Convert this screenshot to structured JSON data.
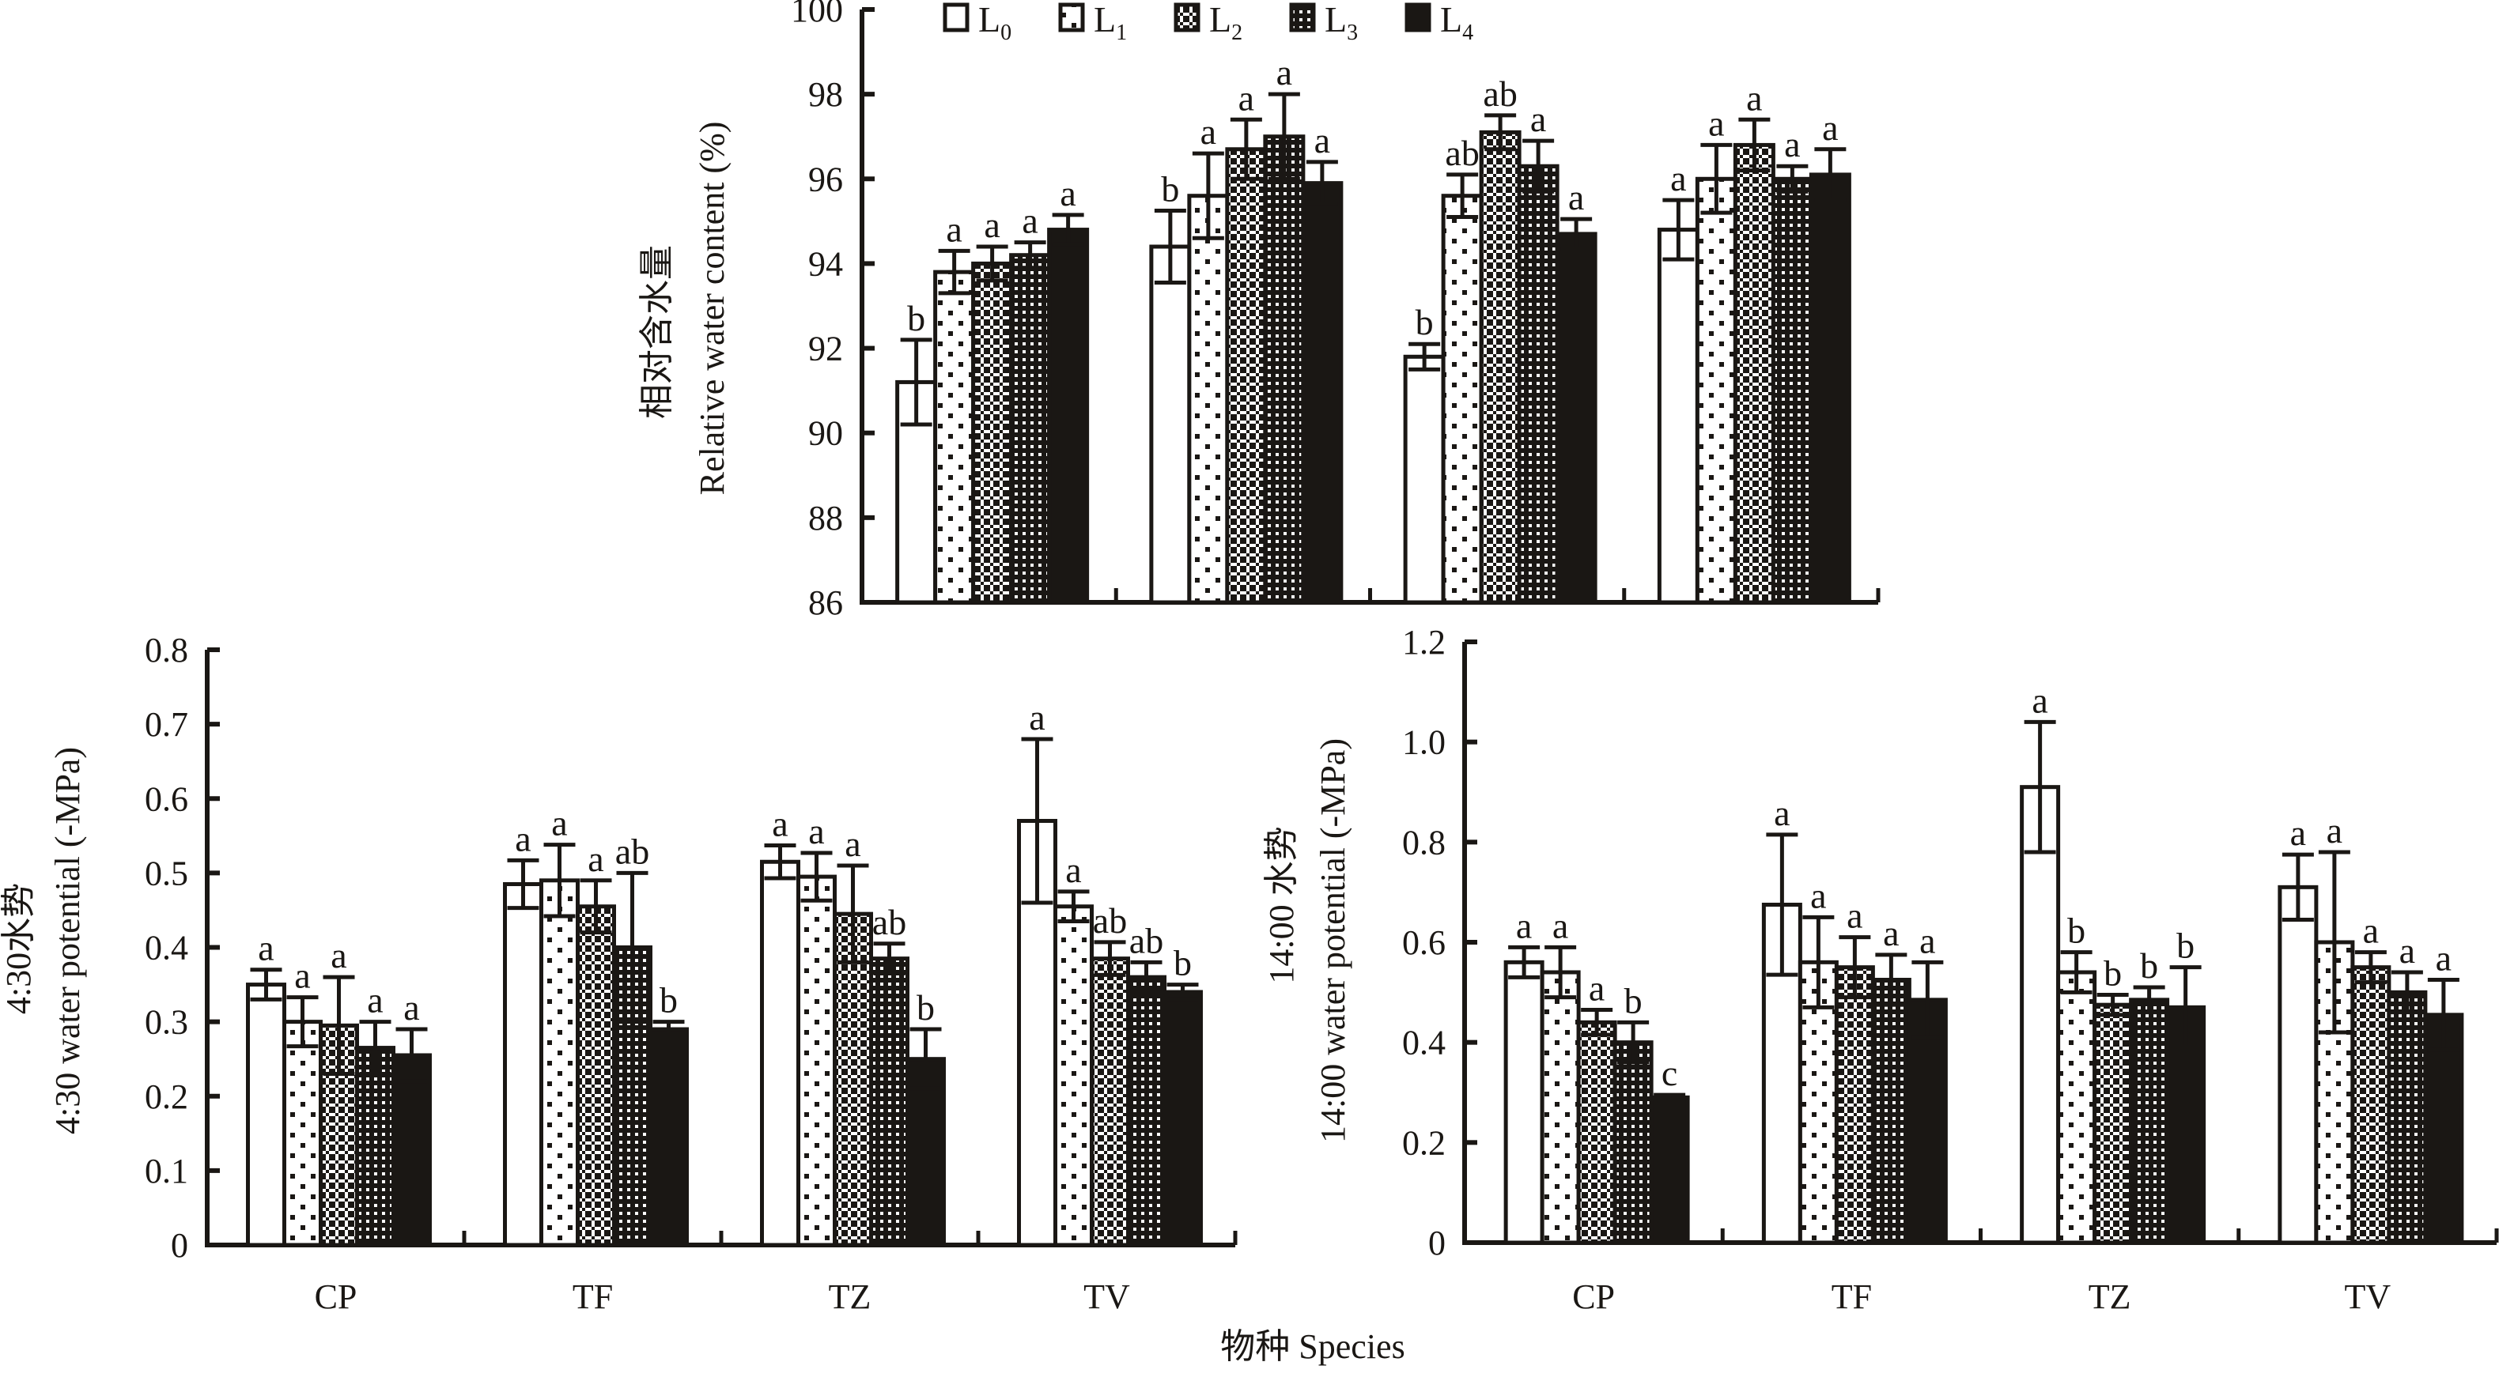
{
  "figure": {
    "xlabel_shared": "物种 Species",
    "legend_position": "top"
  },
  "legend": [
    {
      "label": "L",
      "sub": "0",
      "pattern": "empty"
    },
    {
      "label": "L",
      "sub": "1",
      "pattern": "sparse-dots"
    },
    {
      "label": "L",
      "sub": "2",
      "pattern": "checker"
    },
    {
      "label": "L",
      "sub": "3",
      "pattern": "dense-grid"
    },
    {
      "label": "L",
      "sub": "4",
      "pattern": "solid"
    }
  ],
  "colors": {
    "ink": "#1a1714",
    "background": "#ffffff"
  },
  "chart_data": [
    {
      "id": "rwc",
      "type": "bar",
      "title": "",
      "ylabel_cn": "相对含水量",
      "ylabel": "Relative water content (%)",
      "xlabel": "",
      "ylim": [
        86,
        100
      ],
      "yticks": [
        86,
        88,
        90,
        92,
        94,
        96,
        98,
        100
      ],
      "ytick_labels": [
        "86",
        "88",
        "90",
        "92",
        "94",
        "96",
        "98",
        "100"
      ],
      "show_category_labels": false,
      "categories": [
        "CP",
        "TF",
        "TZ",
        "TV"
      ],
      "series": [
        {
          "name": "L0",
          "values": [
            91.2,
            94.4,
            91.8,
            94.8
          ],
          "errors": [
            1.0,
            0.85,
            0.3,
            0.7
          ],
          "letters": [
            "b",
            "b",
            "b",
            "a"
          ]
        },
        {
          "name": "L1",
          "values": [
            93.8,
            95.6,
            95.6,
            96.0
          ],
          "errors": [
            0.5,
            1.0,
            0.5,
            0.8
          ],
          "letters": [
            "a",
            "a",
            "ab",
            "a"
          ]
        },
        {
          "name": "L2",
          "values": [
            94.0,
            96.7,
            97.1,
            96.8
          ],
          "errors": [
            0.4,
            0.7,
            0.4,
            0.6
          ],
          "letters": [
            "a",
            "a",
            "ab",
            "a"
          ]
        },
        {
          "name": "L3",
          "values": [
            94.2,
            97.0,
            96.3,
            96.0
          ],
          "errors": [
            0.3,
            1.0,
            0.6,
            0.3
          ],
          "letters": [
            "a",
            "a",
            "a",
            "a"
          ]
        },
        {
          "name": "L4",
          "values": [
            94.8,
            95.9,
            94.7,
            96.1
          ],
          "errors": [
            0.35,
            0.5,
            0.35,
            0.6
          ],
          "letters": [
            "a",
            "a",
            "a",
            "a"
          ]
        }
      ]
    },
    {
      "id": "wp430",
      "type": "bar",
      "title": "",
      "ylabel_cn": "4:30水势",
      "ylabel": "4:30 water potential (-MPa)",
      "xlabel": "",
      "ylim": [
        0,
        0.8
      ],
      "yticks": [
        0,
        0.1,
        0.2,
        0.3,
        0.4,
        0.5,
        0.6,
        0.7,
        0.8
      ],
      "ytick_labels": [
        "0",
        "0.1",
        "0.2",
        "0.3",
        "0.4",
        "0.5",
        "0.6",
        "0.7",
        "0.8"
      ],
      "show_category_labels": true,
      "categories": [
        "CP",
        "TF",
        "TZ",
        "TV"
      ],
      "series": [
        {
          "name": "L0",
          "values": [
            0.35,
            0.485,
            0.515,
            0.57
          ],
          "errors": [
            0.02,
            0.032,
            0.022,
            0.11
          ],
          "letters": [
            "a",
            "a",
            "a",
            "a"
          ]
        },
        {
          "name": "L1",
          "values": [
            0.3,
            0.49,
            0.495,
            0.455
          ],
          "errors": [
            0.033,
            0.048,
            0.032,
            0.02
          ],
          "letters": [
            "a",
            "a",
            "a",
            "a"
          ]
        },
        {
          "name": "L2",
          "values": [
            0.295,
            0.455,
            0.445,
            0.385
          ],
          "errors": [
            0.065,
            0.035,
            0.065,
            0.022
          ],
          "letters": [
            "a",
            "a",
            "a",
            "ab"
          ]
        },
        {
          "name": "L3",
          "values": [
            0.265,
            0.4,
            0.385,
            0.36
          ],
          "errors": [
            0.035,
            0.1,
            0.02,
            0.02
          ],
          "letters": [
            "a",
            "ab",
            "ab",
            "ab"
          ]
        },
        {
          "name": "L4",
          "values": [
            0.255,
            0.29,
            0.25,
            0.34
          ],
          "errors": [
            0.035,
            0.01,
            0.04,
            0.01
          ],
          "letters": [
            "a",
            "b",
            "b",
            "b"
          ]
        }
      ]
    },
    {
      "id": "wp1400",
      "type": "bar",
      "title": "",
      "ylabel_cn": "14:00 水势",
      "ylabel": "14:00 water potential (-MPa)",
      "xlabel": "",
      "ylim": [
        0,
        1.2
      ],
      "yticks": [
        0,
        0.2,
        0.4,
        0.6,
        0.8,
        1.0,
        1.2
      ],
      "ytick_labels": [
        "0",
        "0.2",
        "0.4",
        "0.6",
        "0.8",
        "1.0",
        "1.2"
      ],
      "show_category_labels": true,
      "categories": [
        "CP",
        "TF",
        "TZ",
        "TV"
      ],
      "series": [
        {
          "name": "L0",
          "values": [
            0.56,
            0.675,
            0.91,
            0.71
          ],
          "errors": [
            0.03,
            0.14,
            0.13,
            0.065
          ],
          "letters": [
            "a",
            "a",
            "a",
            "a"
          ]
        },
        {
          "name": "L1",
          "values": [
            0.54,
            0.56,
            0.54,
            0.6
          ],
          "errors": [
            0.05,
            0.09,
            0.04,
            0.18
          ],
          "letters": [
            "a",
            "a",
            "b",
            "a"
          ]
        },
        {
          "name": "L2",
          "values": [
            0.44,
            0.55,
            0.475,
            0.55
          ],
          "errors": [
            0.025,
            0.06,
            0.02,
            0.03
          ],
          "letters": [
            "a",
            "a",
            "b",
            "a"
          ]
        },
        {
          "name": "L3",
          "values": [
            0.4,
            0.525,
            0.485,
            0.5
          ],
          "errors": [
            0.04,
            0.05,
            0.025,
            0.04
          ],
          "letters": [
            "b",
            "a",
            "b",
            "a"
          ]
        },
        {
          "name": "L4",
          "values": [
            0.29,
            0.485,
            0.47,
            0.455
          ],
          "errors": [
            0.005,
            0.075,
            0.08,
            0.07
          ],
          "letters": [
            "c",
            "a",
            "b",
            "a"
          ]
        }
      ]
    }
  ]
}
